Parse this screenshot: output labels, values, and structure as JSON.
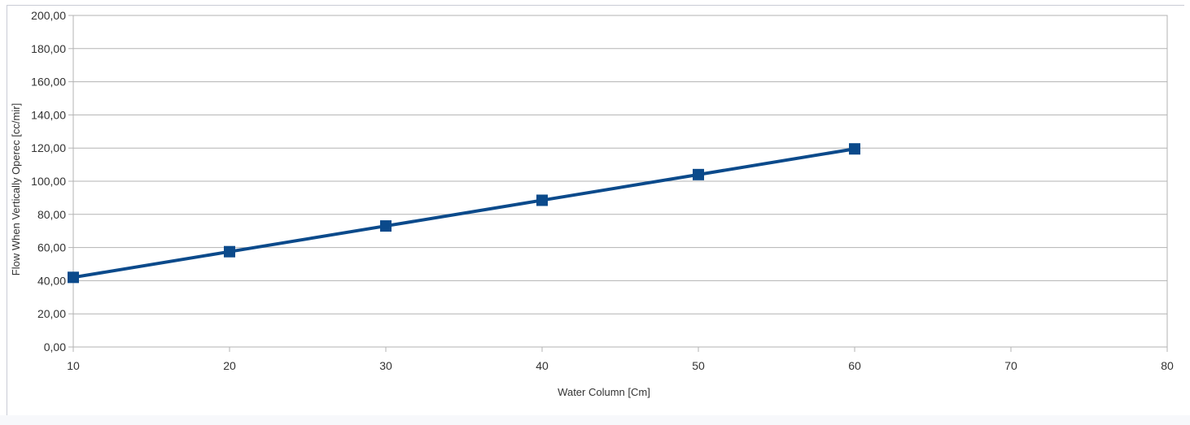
{
  "chart_data": {
    "type": "line",
    "title": "",
    "xlabel": "Water Column [Cm]",
    "ylabel": "Flow When Vertically Operec [cc/mir]",
    "x_ticks": [
      "10",
      "20",
      "30",
      "40",
      "50",
      "60",
      "70",
      "80"
    ],
    "y_ticks": [
      "0,00",
      "20,00",
      "40,00",
      "60,00",
      "80,00",
      "100,00",
      "120,00",
      "140,00",
      "160,00",
      "180,00",
      "200,00"
    ],
    "xlim": [
      10,
      80
    ],
    "ylim": [
      0,
      200
    ],
    "grid": "horizontal",
    "legend": "none",
    "marker": "square",
    "series_color": "#0b4a8b",
    "series": [
      {
        "x": [
          10,
          20,
          30,
          40,
          50,
          60
        ],
        "y": [
          42.0,
          57.5,
          73.0,
          88.5,
          104.0,
          119.5
        ]
      }
    ]
  }
}
